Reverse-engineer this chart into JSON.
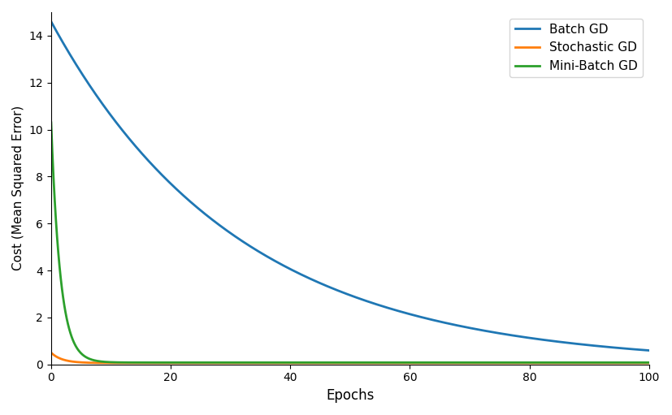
{
  "title": "",
  "xlabel": "Epochs",
  "ylabel": "Cost (Mean Squared Error)",
  "xlim": [
    0,
    100
  ],
  "ylim": [
    0,
    15
  ],
  "yticks": [
    0,
    2,
    4,
    6,
    8,
    10,
    12,
    14
  ],
  "xticks": [
    0,
    20,
    40,
    60,
    80,
    100
  ],
  "legend": [
    "Batch GD",
    "Stochastic GD",
    "Mini-Batch GD"
  ],
  "colors": [
    "#1f77b4",
    "#ff7f0e",
    "#2ca02c"
  ],
  "bgd_start": 14.6,
  "bgd_decay": 0.032,
  "bgd_floor": 0.0,
  "sgd_start": 0.5,
  "sgd_decay": 0.55,
  "sgd_floor": 0.06,
  "minibatch_start": 10.3,
  "minibatch_decay": 0.65,
  "minibatch_floor": 0.08,
  "figsize": [
    8.27,
    5.11
  ],
  "dpi": 100
}
